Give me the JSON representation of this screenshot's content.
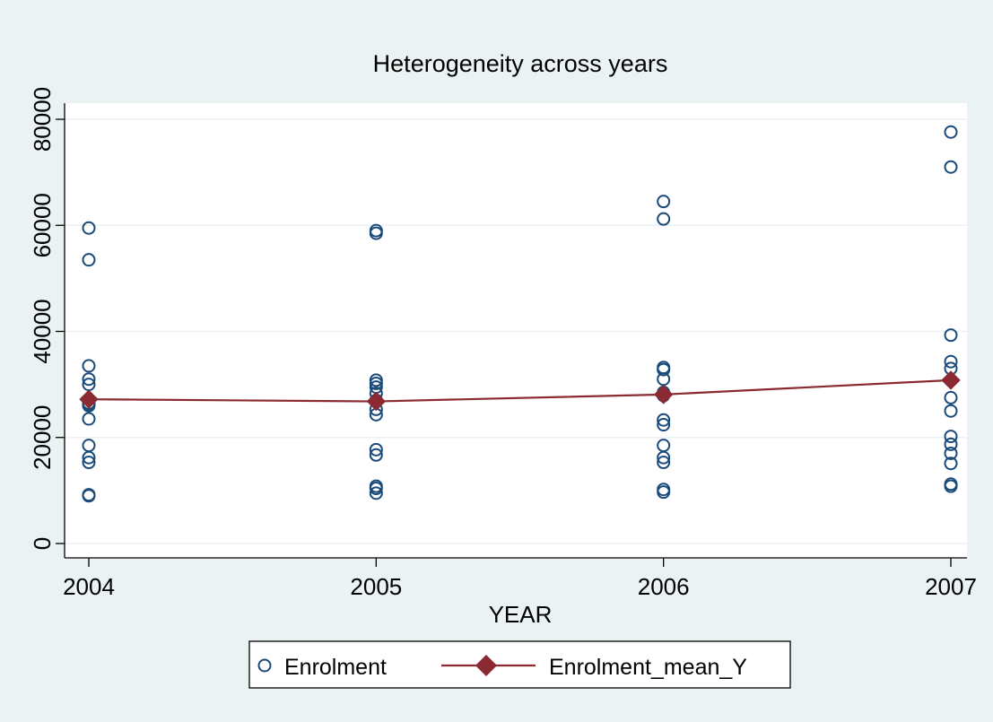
{
  "chart_data": {
    "type": "scatter",
    "title": "Heterogeneity across years",
    "xlabel": "YEAR",
    "ylabel": "",
    "xlim": [
      2004,
      2007
    ],
    "ylim": [
      0,
      80000
    ],
    "xticks": [
      2004,
      2005,
      2006,
      2007
    ],
    "yticks": [
      0,
      20000,
      40000,
      60000,
      80000
    ],
    "grid": true,
    "legend": "bottom",
    "colors": {
      "background": "#eaf2f3",
      "plot_area": "#ffffff",
      "grid": "#eaf2f3",
      "title": "#1a2e5c",
      "scatter": "#1a4a7a",
      "mean_line": "#8b2a32"
    },
    "series": [
      {
        "name": "Enrolment",
        "type": "scatter",
        "marker": "hollow-circle",
        "x": [
          2004,
          2004,
          2004,
          2004,
          2004,
          2004,
          2004,
          2004,
          2004,
          2004,
          2004,
          2004,
          2004,
          2004,
          2005,
          2005,
          2005,
          2005,
          2005,
          2005,
          2005,
          2005,
          2005,
          2005,
          2005,
          2005,
          2005,
          2005,
          2006,
          2006,
          2006,
          2006,
          2006,
          2006,
          2006,
          2006,
          2006,
          2006,
          2006,
          2006,
          2006,
          2006,
          2007,
          2007,
          2007,
          2007,
          2007,
          2007,
          2007,
          2007,
          2007,
          2007,
          2007,
          2007,
          2007,
          2007
        ],
        "y": [
          59500,
          53500,
          33500,
          31000,
          30000,
          26500,
          26000,
          23500,
          18500,
          16200,
          15300,
          9200,
          9000,
          26300,
          59000,
          58500,
          30800,
          30200,
          28300,
          27000,
          25300,
          24300,
          17700,
          16700,
          10800,
          10400,
          9500,
          29500,
          64500,
          61200,
          33200,
          32800,
          31000,
          27900,
          23300,
          22400,
          18500,
          16200,
          15300,
          10200,
          9700,
          28500,
          77600,
          71000,
          39300,
          34300,
          33000,
          27500,
          25000,
          20200,
          18700,
          17000,
          15100,
          11200,
          10800,
          30800
        ]
      },
      {
        "name": "Enrolment_mean_Y",
        "type": "line",
        "marker": "diamond",
        "x": [
          2004,
          2005,
          2006,
          2007
        ],
        "y": [
          27200,
          26800,
          28100,
          30800
        ]
      }
    ]
  }
}
